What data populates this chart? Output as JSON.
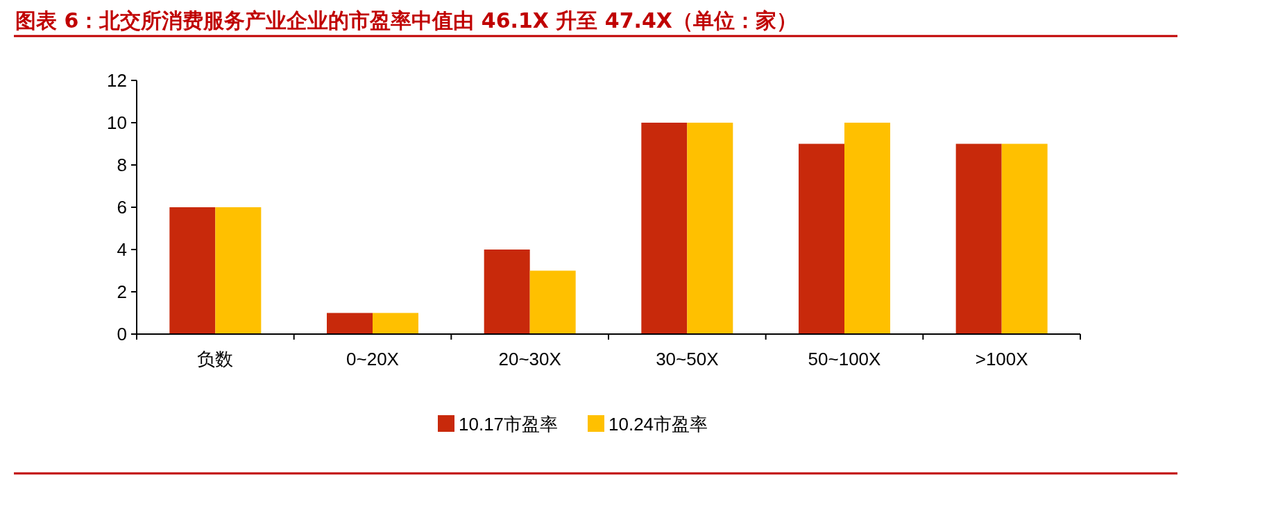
{
  "chart_data": {
    "type": "bar",
    "title": "图表 6：北交所消费服务产业企业的市盈率中值由 46.1X 升至 47.4X（单位：家）",
    "categories": [
      "负数",
      "0~20X",
      "20~30X",
      "30~50X",
      "50~100X",
      ">100X"
    ],
    "series": [
      {
        "name": "10.17市盈率",
        "color": "#c8290b",
        "values": [
          6,
          1,
          4,
          10,
          9,
          9
        ]
      },
      {
        "name": "10.24市盈率",
        "color": "#ffc000",
        "values": [
          6,
          1,
          3,
          10,
          10,
          9
        ]
      }
    ],
    "ylim": [
      0,
      12
    ],
    "yticks": [
      0,
      2,
      4,
      6,
      8,
      10,
      12
    ],
    "grid": false,
    "legend": "bottom"
  }
}
